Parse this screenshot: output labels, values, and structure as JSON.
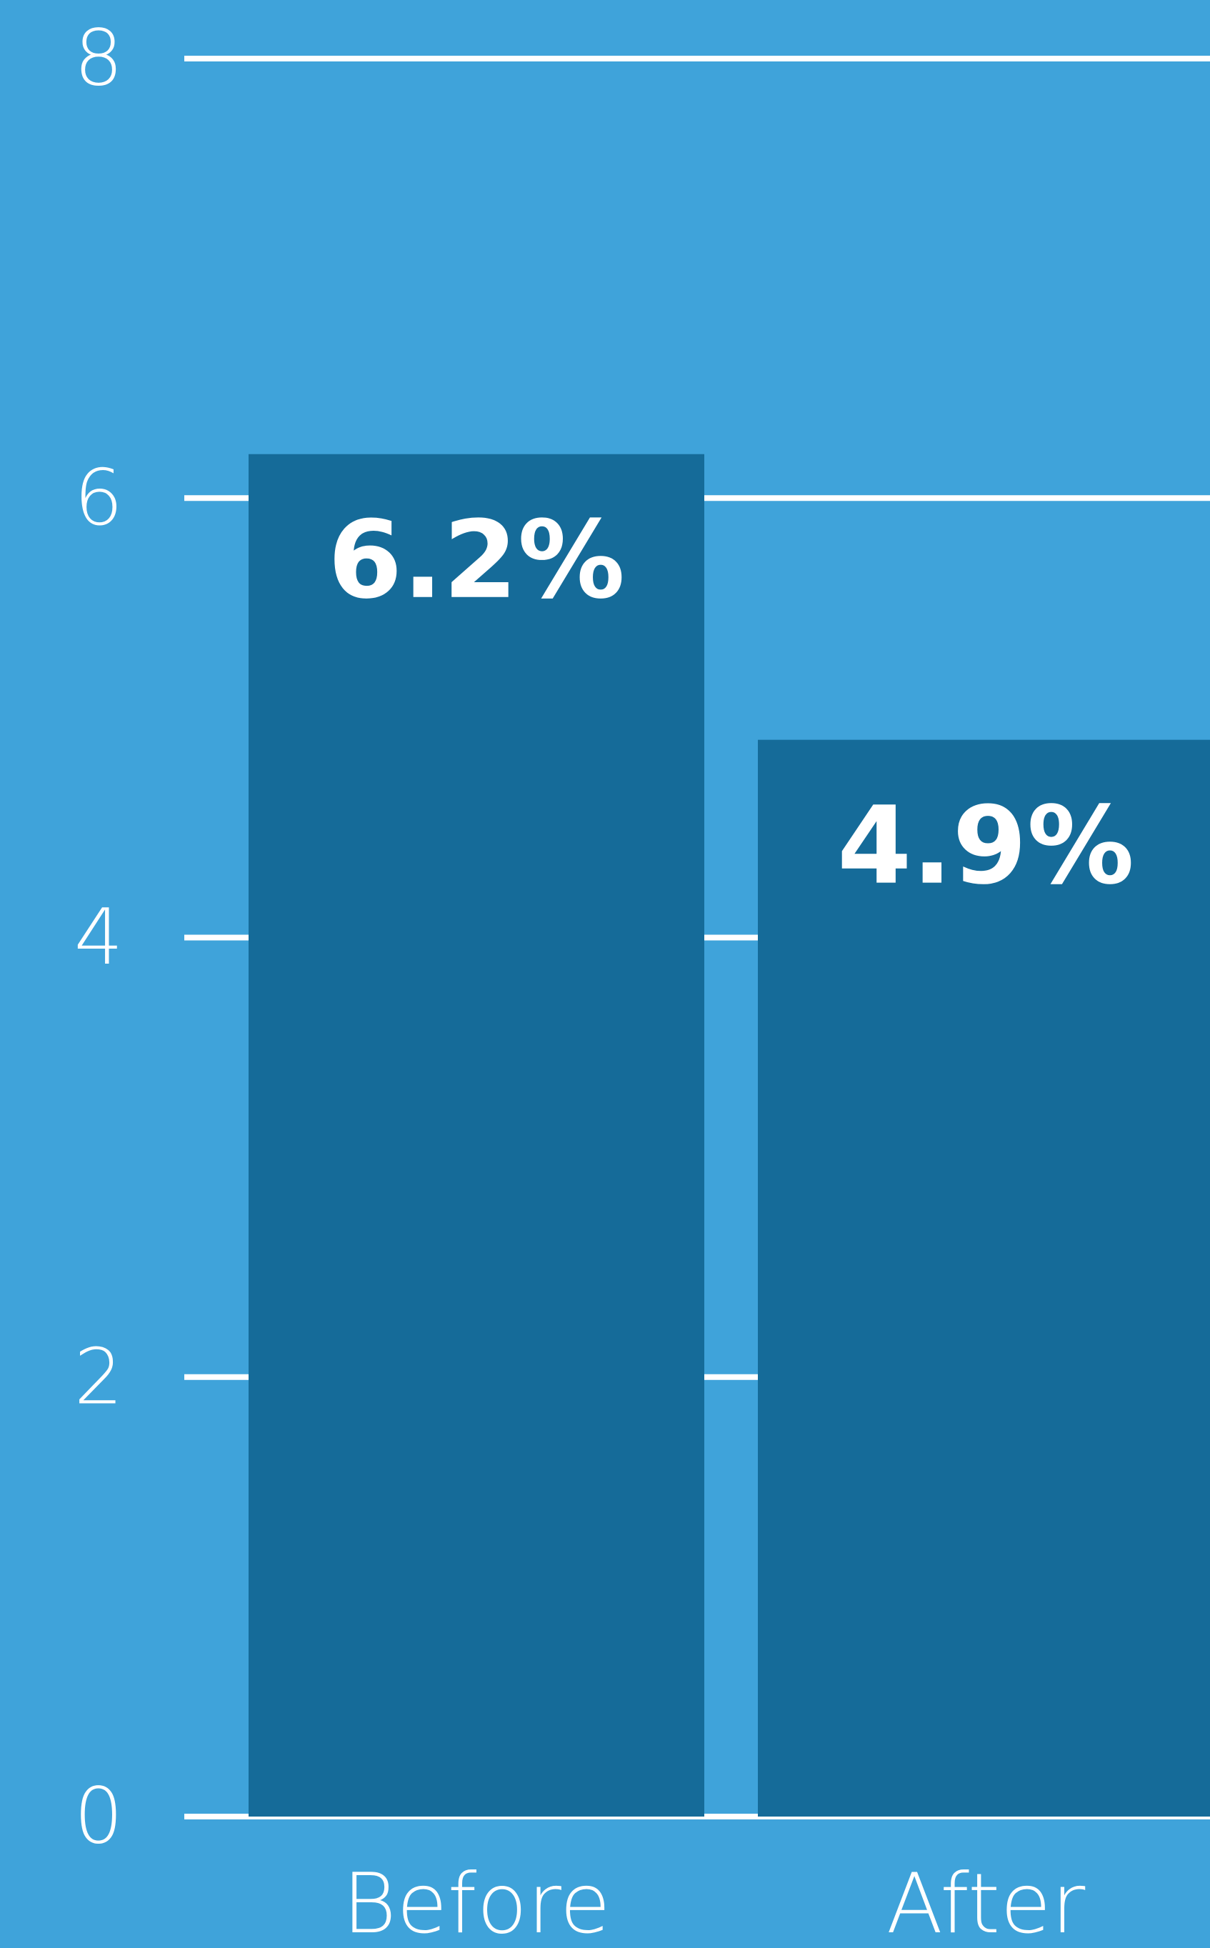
{
  "chart_data": {
    "type": "bar",
    "categories": [
      "Before",
      "After"
    ],
    "values": [
      6.2,
      4.9
    ],
    "data_labels": [
      "6.2%",
      "4.9%"
    ],
    "ylim": [
      0,
      8
    ],
    "yticks": [
      0,
      2,
      4,
      6,
      8
    ],
    "title": "",
    "xlabel": "",
    "ylabel": "",
    "grid": true,
    "legend": "none",
    "colors": {
      "background": "#3fa3da",
      "bar": "#156b99",
      "grid": "#ffffff",
      "text": "#ffffff"
    }
  }
}
